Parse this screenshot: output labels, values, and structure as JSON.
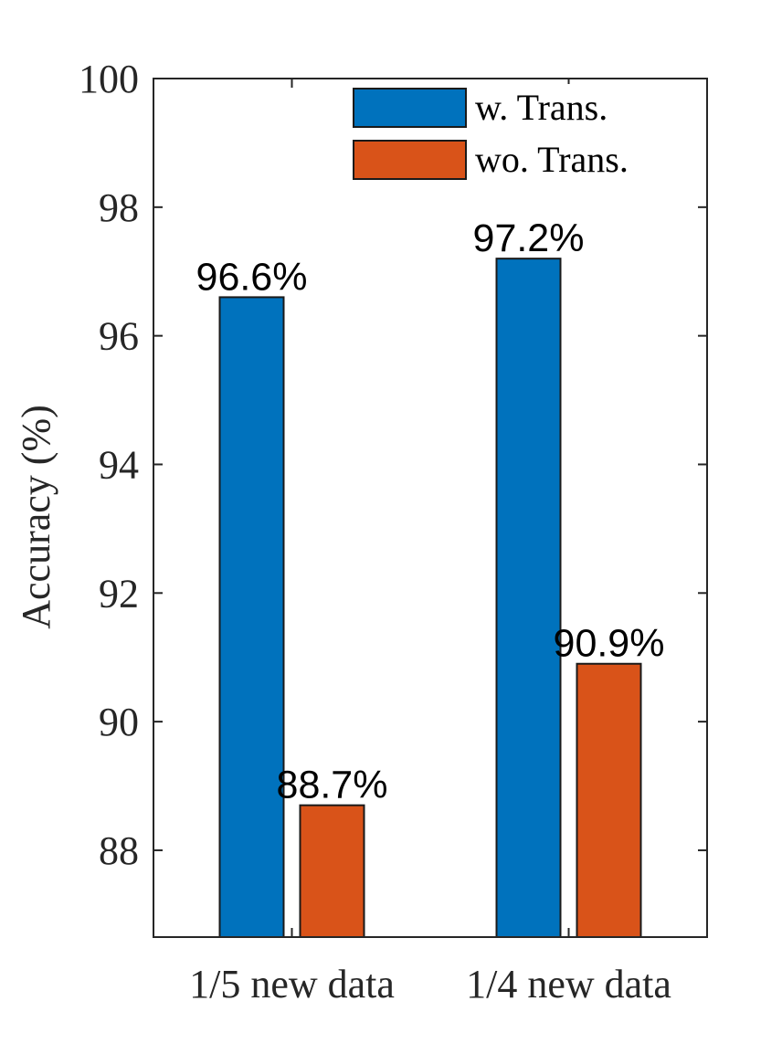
{
  "chart_data": {
    "type": "bar",
    "categories": [
      "1/5 new data",
      "1/4 new data"
    ],
    "series": [
      {
        "name": "w. Trans.",
        "values": [
          96.6,
          97.2
        ],
        "labels": [
          "96.6%",
          "97.2%"
        ],
        "color": "#0072BD"
      },
      {
        "name": "wo. Trans.",
        "values": [
          88.7,
          90.9
        ],
        "labels": [
          "88.7%",
          "90.9%"
        ],
        "color": "#D95319"
      }
    ],
    "xlabel": "",
    "ylabel": "Accuracy (%)",
    "ylim": [
      86.65,
      100
    ],
    "yticks": [
      88,
      90,
      92,
      94,
      96,
      98,
      100
    ],
    "grid": false,
    "legend_position": "top-right"
  }
}
